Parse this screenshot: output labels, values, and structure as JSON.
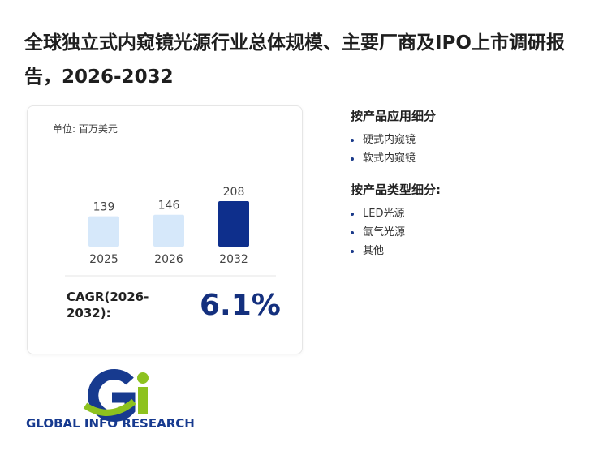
{
  "title": "全球独立式内窥镜光源行业总体规模、主要厂商及IPO上市调研报告，2026-2032",
  "chart_data": {
    "type": "bar",
    "unit": "单位: 百万美元",
    "categories": [
      "2025",
      "2026",
      "2032"
    ],
    "values": [
      139,
      146,
      208
    ],
    "colors": [
      "#d6e8fa",
      "#d6e8fa",
      "#0e2f8c"
    ]
  },
  "cagr": {
    "label": "CAGR(2026-2032):",
    "value": "6.1%"
  },
  "segments": [
    {
      "heading": "按产品应用细分",
      "items": [
        "硬式内窥镜",
        "软式内窥镜"
      ]
    },
    {
      "heading": "按产品类型细分:",
      "items": [
        "LED光源",
        "氙气光源",
        "其他"
      ]
    }
  ],
  "logo": "GLOBAL INFO RESEARCH"
}
